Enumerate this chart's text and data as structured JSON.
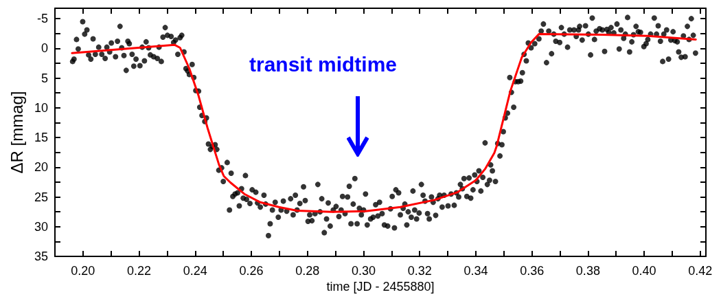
{
  "chart_data": {
    "type": "scatter",
    "xlabel": "time [JD - 2455880]",
    "ylabel": "ΔR [mmag]",
    "xlim": [
      0.19,
      0.422
    ],
    "ylim": [
      35,
      -6.75
    ],
    "xticks": [
      {
        "value": 0.2,
        "label": "0.20"
      },
      {
        "value": 0.21,
        "label": null
      },
      {
        "value": 0.22,
        "label": "0.22"
      },
      {
        "value": 0.23,
        "label": null
      },
      {
        "value": 0.24,
        "label": "0.24"
      },
      {
        "value": 0.25,
        "label": null
      },
      {
        "value": 0.26,
        "label": "0.26"
      },
      {
        "value": 0.27,
        "label": null
      },
      {
        "value": 0.28,
        "label": "0.28"
      },
      {
        "value": 0.29,
        "label": null
      },
      {
        "value": 0.3,
        "label": "0.30"
      },
      {
        "value": 0.31,
        "label": null
      },
      {
        "value": 0.32,
        "label": "0.32"
      },
      {
        "value": 0.33,
        "label": null
      },
      {
        "value": 0.34,
        "label": "0.34"
      },
      {
        "value": 0.35,
        "label": null
      },
      {
        "value": 0.36,
        "label": "0.36"
      },
      {
        "value": 0.37,
        "label": null
      },
      {
        "value": 0.38,
        "label": "0.38"
      },
      {
        "value": 0.39,
        "label": null
      },
      {
        "value": 0.4,
        "label": "0.40"
      },
      {
        "value": 0.41,
        "label": null
      },
      {
        "value": 0.42,
        "label": "0.42"
      }
    ],
    "yticks": [
      -5,
      {
        "value": -2.5,
        "label": null
      },
      0,
      {
        "value": 2.5,
        "label": null
      },
      5,
      {
        "value": 7.5,
        "label": null
      },
      10,
      {
        "value": 12.5,
        "label": null
      },
      15,
      {
        "value": 17.5,
        "label": null
      },
      20,
      {
        "value": 22.5,
        "label": null
      },
      25,
      {
        "value": 27.5,
        "label": null
      },
      30,
      {
        "value": 32.5,
        "label": null
      },
      35
    ],
    "grid": false,
    "marker": "circle",
    "annotations": [
      "transit midtime"
    ],
    "series": [
      {
        "color": "#000000",
        "x": [
          0.1963,
          0.1968,
          0.1977,
          0.1983,
          0.1999,
          0.2006,
          0.2014,
          0.202,
          0.2028,
          0.2036,
          0.2044,
          0.2056,
          0.2067,
          0.2079,
          0.2085,
          0.2095,
          0.2101,
          0.2116,
          0.2123,
          0.2132,
          0.2138,
          0.2146,
          0.2154,
          0.216,
          0.2165,
          0.2175,
          0.2181,
          0.2189,
          0.2203,
          0.2211,
          0.2219,
          0.2225,
          0.2234,
          0.224,
          0.2252,
          0.2265,
          0.2271,
          0.2279,
          0.2285,
          0.2293,
          0.2301,
          0.2314,
          0.2323,
          0.233,
          0.2338,
          0.2346,
          0.2352,
          0.236,
          0.2367,
          0.2373,
          0.2379,
          0.2389,
          0.2395,
          0.2402,
          0.2412,
          0.2416,
          0.2424,
          0.2434,
          0.244,
          0.2447,
          0.2454,
          0.2461,
          0.2471,
          0.2477,
          0.2484,
          0.2494,
          0.25,
          0.2514,
          0.2522,
          0.2528,
          0.2534,
          0.2542,
          0.2551,
          0.2557,
          0.2565,
          0.2571,
          0.2579,
          0.2583,
          0.2595,
          0.2603,
          0.2616,
          0.2622,
          0.2632,
          0.2645,
          0.2651,
          0.2661,
          0.2667,
          0.2675,
          0.2685,
          0.2696,
          0.2706,
          0.2714,
          0.2726,
          0.274,
          0.2749,
          0.2757,
          0.2763,
          0.2773,
          0.2786,
          0.2792,
          0.2802,
          0.2808,
          0.2816,
          0.2827,
          0.2837,
          0.2845,
          0.2851,
          0.286,
          0.2868,
          0.2874,
          0.2881,
          0.2892,
          0.2902,
          0.2912,
          0.292,
          0.2925,
          0.2934,
          0.2943,
          0.2949,
          0.2955,
          0.2963,
          0.2969,
          0.2977,
          0.2985,
          0.2992,
          0.3,
          0.3007,
          0.3013,
          0.3025,
          0.3034,
          0.3043,
          0.3051,
          0.3057,
          0.3066,
          0.3074,
          0.3086,
          0.3096,
          0.3102,
          0.311,
          0.3115,
          0.3125,
          0.3131,
          0.3141,
          0.3147,
          0.3154,
          0.3159,
          0.317,
          0.3176,
          0.3182,
          0.3189,
          0.3198,
          0.3206,
          0.3212,
          0.3219,
          0.3228,
          0.3234,
          0.3242,
          0.3248,
          0.3257,
          0.3265,
          0.3271,
          0.328,
          0.3287,
          0.3301,
          0.3312,
          0.3323,
          0.3331,
          0.3339,
          0.3345,
          0.3352,
          0.3358,
          0.3368,
          0.3376,
          0.3382,
          0.339,
          0.3396,
          0.3404,
          0.3411,
          0.3418,
          0.3425,
          0.3433,
          0.3441,
          0.3449,
          0.3453,
          0.3459,
          0.347,
          0.3478,
          0.3486,
          0.3493,
          0.3498,
          0.3505,
          0.3513,
          0.3521,
          0.3527,
          0.3535,
          0.3541,
          0.3551,
          0.356,
          0.3566,
          0.3572,
          0.358,
          0.3587,
          0.3597,
          0.361,
          0.3625,
          0.3633,
          0.3641,
          0.3652,
          0.366,
          0.367,
          0.3678,
          0.3685,
          0.3699,
          0.3705,
          0.3715,
          0.3727,
          0.3735,
          0.375,
          0.3758,
          0.3766,
          0.377,
          0.3779,
          0.3791,
          0.3801,
          0.3809,
          0.3815,
          0.3823,
          0.3829,
          0.3841,
          0.3851,
          0.3859,
          0.3867,
          0.3874,
          0.3882,
          0.3892,
          0.3903,
          0.3911,
          0.3917,
          0.3927,
          0.3933,
          0.3941,
          0.3948,
          0.3956,
          0.3962,
          0.3971,
          0.3979,
          0.3987,
          0.3999,
          0.4007,
          0.4013,
          0.4023,
          0.4036,
          0.4044,
          0.405,
          0.4058,
          0.4066,
          0.407,
          0.408,
          0.4087,
          0.4095,
          0.4103,
          0.4109,
          0.4118,
          0.4123,
          0.4132,
          0.414,
          0.4146,
          0.4154,
          0.416,
          0.4168,
          0.4175,
          0.4183
        ],
        "values": [
          2.2,
          1.8,
          -1.5,
          0.1,
          -4.5,
          -2.4,
          -3.1,
          1.1,
          1.8,
          -1.6,
          1.0,
          -0.2,
          1.0,
          1.7,
          -0.2,
          0.6,
          -0.9,
          1.4,
          -1.2,
          -3.7,
          -0.1,
          1.2,
          3.7,
          -1.2,
          -0.8,
          1.0,
          3.0,
          1.8,
          2.9,
          -0.2,
          2.1,
          -1.1,
          -0.1,
          1.1,
          1.4,
          1.7,
          -0.2,
          2.2,
          -1.9,
          -3.5,
          -2.2,
          -2.0,
          -1.0,
          -1.4,
          1.0,
          -1.8,
          -2.2,
          0.6,
          3.4,
          3.8,
          4.4,
          2.7,
          4.9,
          7.1,
          7.2,
          9.9,
          11.3,
          12.3,
          11.7,
          16.1,
          17.0,
          16.5,
          16.2,
          17.0,
          20.5,
          20.1,
          22.4,
          19.2,
          27.2,
          21.0,
          24.9,
          24.5,
          24.3,
          26.5,
          23.6,
          25.2,
          21.4,
          25.4,
          26.1,
          23.8,
          24.2,
          26.0,
          26.7,
          24.7,
          26.2,
          31.5,
          29.5,
          27.2,
          25.9,
          28.4,
          27.2,
          25.7,
          27.4,
          25.3,
          28.0,
          24.7,
          27.2,
          26.1,
          23.3,
          25.6,
          29.1,
          28.0,
          29.0,
          27.8,
          22.9,
          27.5,
          25.3,
          31.0,
          28.7,
          26.0,
          29.9,
          27.2,
          26.6,
          28.3,
          27.2,
          24.9,
          27.8,
          25.0,
          23.2,
          29.5,
          26.2,
          21.9,
          29.5,
          26.9,
          28.0,
          27.2,
          24.5,
          29.7,
          28.7,
          28.4,
          26.3,
          28.2,
          25.9,
          27.8,
          29.7,
          29.9,
          27.0,
          24.9,
          30.2,
          23.8,
          24.3,
          28.0,
          26.9,
          26.2,
          29.7,
          27.5,
          28.4,
          24.0,
          27.2,
          28.7,
          27.7,
          22.9,
          24.7,
          25.7,
          27.8,
          28.7,
          25.0,
          25.9,
          28.1,
          25.3,
          24.7,
          26.7,
          24.7,
          26.5,
          24.5,
          26.4,
          24.3,
          25.0,
          22.9,
          23.6,
          21.9,
          24.9,
          21.8,
          25.2,
          23.8,
          21.3,
          22.4,
          20.6,
          24.0,
          21.7,
          15.9,
          22.9,
          22.2,
          19.6,
          20.6,
          22.4,
          16.0,
          18.1,
          16.2,
          14.0,
          11.7,
          10.9,
          4.9,
          7.4,
          9.9,
          5.6,
          5.6,
          5.5,
          4.1,
          1.0,
          2.1,
          -0.9,
          -0.1,
          -0.8,
          -1.6,
          -2.9,
          -4.1,
          2.4,
          -2.9,
          0.9,
          -2.4,
          -1.2,
          -1.0,
          -3.5,
          -2.4,
          -0.2,
          -3.1,
          -3.1,
          -2.0,
          -3.1,
          -3.7,
          -1.4,
          -3.8,
          -2.4,
          1.1,
          -5.1,
          -1.5,
          -2.9,
          -3.3,
          -3.1,
          0.5,
          -3.2,
          -2.7,
          -3.5,
          -2.6,
          -4.1,
          0.1,
          -3.1,
          -1.7,
          -2.4,
          -5.2,
          0.6,
          -1.1,
          -2.3,
          -3.7,
          -2.8,
          -2.7,
          -0.3,
          -0.8,
          -1.5,
          -2.4,
          -5.1,
          -2.4,
          -3.8,
          -1.2,
          2.2,
          -2.4,
          -3.1,
          1.8,
          -1.4,
          -2.8,
          -1.3,
          -1.1,
          0.6,
          1.5,
          -2.1,
          1.4,
          -3.7,
          -1.5,
          -5.0,
          -2.2,
          0.8
        ]
      },
      {
        "type": "line",
        "color": "#ff0000",
        "marker": "none",
        "line_style": "solid",
        "x": [
          0.1961,
          0.2326,
          0.2346,
          0.2379,
          0.2412,
          0.2444,
          0.2469,
          0.2485,
          0.2502,
          0.2526,
          0.2575,
          0.2632,
          0.2698,
          0.2763,
          0.2886,
          0.3008,
          0.3131,
          0.3253,
          0.3335,
          0.34,
          0.3433,
          0.3466,
          0.3474,
          0.3523,
          0.3564,
          0.3597,
          0.3625,
          0.385,
          0.4013,
          0.4184
        ],
        "values": [
          0.8,
          -0.6,
          -0.1,
          3.4,
          8.0,
          13.4,
          17.2,
          19.6,
          21.5,
          22.6,
          24.5,
          25.9,
          26.7,
          27.3,
          27.5,
          27.4,
          26.7,
          25.5,
          24.2,
          22.2,
          20.3,
          17.6,
          16.5,
          7.2,
          1.5,
          -1.0,
          -2.4,
          -2.3,
          -2.1,
          -1.5
        ]
      }
    ]
  }
}
